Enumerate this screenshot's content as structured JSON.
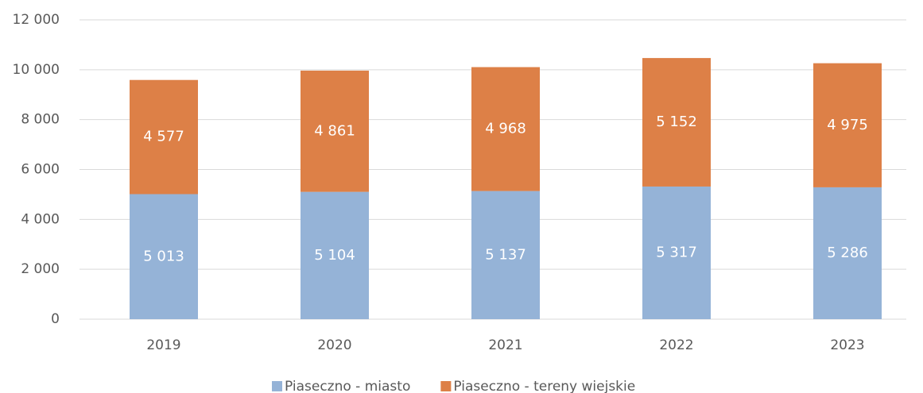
{
  "chart_data": {
    "type": "stacked_bar",
    "categories": [
      "2019",
      "2020",
      "2021",
      "2022",
      "2023"
    ],
    "series": [
      {
        "name": "Piaseczno - miasto",
        "color": "#95b3d7",
        "values": [
          5013,
          5104,
          5137,
          5317,
          5286
        ],
        "value_labels": [
          "5 013",
          "5 104",
          "5 137",
          "5 317",
          "5 286"
        ]
      },
      {
        "name": "Piaseczno - tereny wiejskie",
        "color": "#dd8047",
        "values": [
          4577,
          4861,
          4968,
          5152,
          4975
        ],
        "value_labels": [
          "4 577",
          "4 861",
          "4 968",
          "5 152",
          "4 975"
        ]
      }
    ],
    "ylim": [
      0,
      12000
    ],
    "yticks": [
      0,
      {
        "value": 2000,
        "label": "2 000"
      },
      {
        "value": 4000,
        "label": "4 000"
      },
      {
        "value": 6000,
        "label": "6 000"
      },
      {
        "value": 8000,
        "label": "8 000"
      },
      {
        "value": 10000,
        "label": "10 000"
      },
      {
        "value": 12000,
        "label": "12 000"
      }
    ],
    "grid": true,
    "legend": "bottom"
  }
}
